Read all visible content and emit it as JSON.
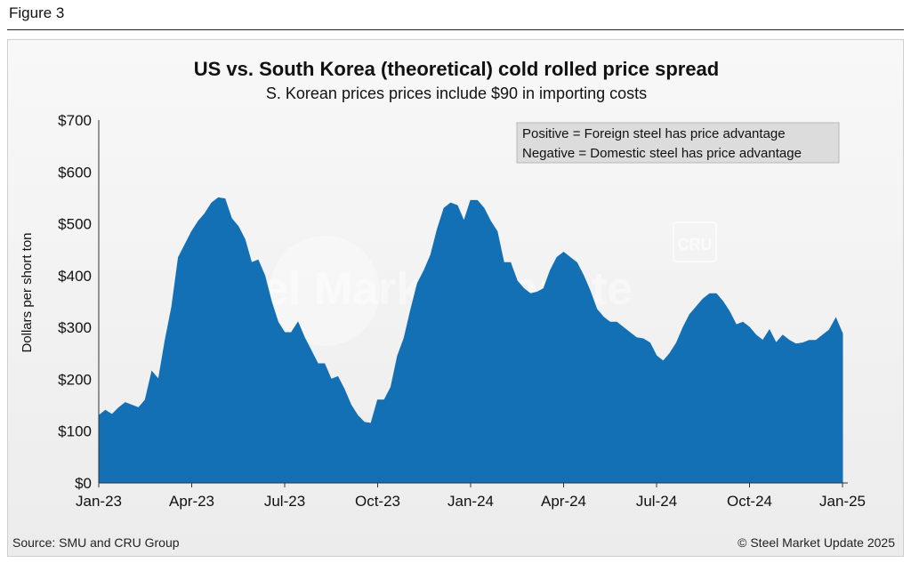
{
  "figure_label": "Figure 3",
  "footer": {
    "source": "Source: SMU and CRU Group",
    "copyright": "© Steel Market Update 2025"
  },
  "watermark": {
    "text": "Steel Market Update",
    "logo_text": "CRU"
  },
  "colors": {
    "area_fill": "#1470b4",
    "panel_background": "#f1f1f1"
  },
  "chart_data": {
    "type": "area",
    "title": "US vs. South Korea (theoretical) cold rolled price spread",
    "subtitle": "S. Korean prices prices include $90 in importing costs",
    "ylabel": "Dollars per short ton",
    "ylim": [
      0,
      700
    ],
    "yticks": [
      0,
      100,
      200,
      300,
      400,
      500,
      600,
      700
    ],
    "ytick_labels": [
      "$0",
      "$100",
      "$200",
      "$300",
      "$400",
      "$500",
      "$600",
      "$700"
    ],
    "xtick_labels": [
      "Jan-23",
      "Apr-23",
      "Jul-23",
      "Oct-23",
      "Jan-24",
      "Apr-24",
      "Jul-24",
      "Oct-24",
      "Jan-25"
    ],
    "legend": {
      "placement": "top-right",
      "lines": [
        "Positive = Foreign steel has price advantage",
        "Negative = Domestic steel has price advantage"
      ]
    },
    "grid": false,
    "series": [
      {
        "values": [
          130,
          140,
          132,
          145,
          155,
          150,
          145,
          160,
          215,
          200,
          275,
          340,
          435,
          460,
          485,
          505,
          520,
          540,
          550,
          548,
          510,
          495,
          470,
          425,
          430,
          400,
          350,
          310,
          290,
          290,
          310,
          280,
          255,
          230,
          230,
          200,
          205,
          180,
          150,
          130,
          117,
          115,
          160,
          160,
          185,
          245,
          280,
          335,
          385,
          410,
          440,
          490,
          530,
          540,
          535,
          505,
          545,
          545,
          530,
          505,
          485,
          425,
          425,
          390,
          375,
          365,
          368,
          375,
          410,
          435,
          445,
          435,
          425,
          400,
          370,
          335,
          320,
          310,
          310,
          300,
          290,
          280,
          278,
          270,
          245,
          235,
          250,
          270,
          300,
          325,
          340,
          355,
          365,
          365,
          350,
          330,
          305,
          310,
          300,
          285,
          275,
          295,
          270,
          285,
          275,
          268,
          270,
          275,
          275,
          285,
          295,
          318,
          288
        ]
      }
    ]
  }
}
